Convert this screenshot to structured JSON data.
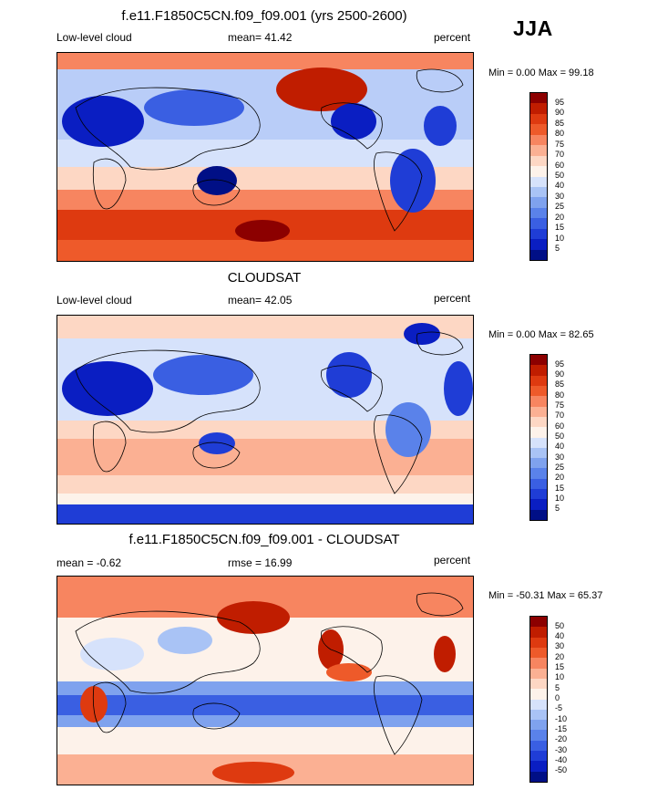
{
  "season": "JJA",
  "panels": [
    {
      "title": "f.e11.F1850C5CN.f09_f09.001 (yrs 2500-2600)",
      "left_label": "Low-level cloud",
      "stat_label": "mean=  41.42",
      "units": "percent",
      "minmax": "Min =   0.00 Max =  99.18",
      "colorbar": {
        "levels": [
          "95",
          "90",
          "85",
          "80",
          "75",
          "70",
          "60",
          "50",
          "40",
          "30",
          "25",
          "20",
          "15",
          "10",
          "5"
        ],
        "colors": [
          "#8c0000",
          "#c01d00",
          "#de3a10",
          "#ee5a2a",
          "#f78560",
          "#fbb093",
          "#fdd7c4",
          "#fdf2ea",
          "#d6e2fb",
          "#a9c3f5",
          "#7fa2ee",
          "#5a82ea",
          "#3a5fe2",
          "#1f3dd6",
          "#0a1ec2",
          "#000f86"
        ]
      }
    },
    {
      "title": "CLOUDSAT",
      "left_label": "Low-level cloud",
      "stat_label": "mean=  42.05",
      "units": "percent",
      "minmax": "Min =   0.00 Max =  82.65",
      "colorbar": {
        "levels": [
          "95",
          "90",
          "85",
          "80",
          "75",
          "70",
          "60",
          "50",
          "40",
          "30",
          "25",
          "20",
          "15",
          "10",
          "5"
        ],
        "colors": [
          "#8c0000",
          "#c01d00",
          "#de3a10",
          "#ee5a2a",
          "#f78560",
          "#fbb093",
          "#fdd7c4",
          "#fdf2ea",
          "#d6e2fb",
          "#a9c3f5",
          "#7fa2ee",
          "#5a82ea",
          "#3a5fe2",
          "#1f3dd6",
          "#0a1ec2",
          "#000f86"
        ]
      }
    },
    {
      "title": "f.e11.F1850C5CN.f09_f09.001 - CLOUDSAT",
      "left_label": "mean =  -0.62",
      "stat_label": "rmse =  16.99",
      "units": "percent",
      "minmax": "Min = -50.31 Max =  65.37",
      "colorbar": {
        "levels": [
          "50",
          "40",
          "30",
          "20",
          "15",
          "10",
          "5",
          "0",
          "-5",
          "-10",
          "-15",
          "-20",
          "-30",
          "-40",
          "-50"
        ],
        "colors": [
          "#8c0000",
          "#c01d00",
          "#de3a10",
          "#ee5a2a",
          "#f78560",
          "#fbb093",
          "#fdd7c4",
          "#fdf2ea",
          "#d6e2fb",
          "#a9c3f5",
          "#7fa2ee",
          "#5a82ea",
          "#3a5fe2",
          "#1f3dd6",
          "#0a1ec2",
          "#000f86"
        ]
      }
    }
  ]
}
